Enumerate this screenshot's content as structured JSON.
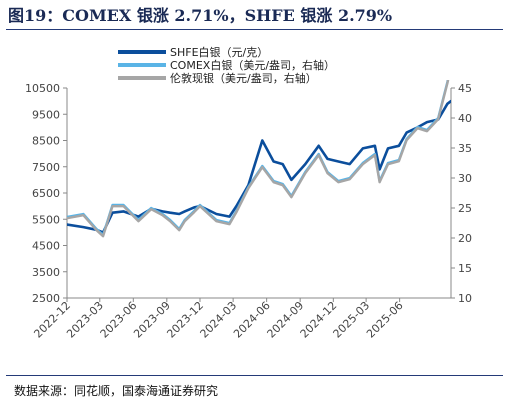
{
  "figure": {
    "title": "图19：COMEX 银涨 2.71%，SHFE 银涨 2.79%",
    "source": "数据来源：同花顺，国泰海通证券研究"
  },
  "chart_data": {
    "type": "line",
    "x_tick_labels": [
      "2022-12",
      "2023-03",
      "2023-06",
      "2023-09",
      "2023-12",
      "2024-03",
      "2024-06",
      "2024-09",
      "2024-12",
      "2025-03",
      "2025-06"
    ],
    "x_range": [
      "2022-12-01",
      "2025-10-20"
    ],
    "y_left": {
      "min": 2500,
      "max": 10500,
      "ticks": [
        2500,
        3500,
        4500,
        5500,
        6500,
        7500,
        8500,
        9500,
        10500
      ]
    },
    "y_right": {
      "min": 10,
      "max": 45,
      "ticks": [
        10,
        15,
        20,
        25,
        30,
        35,
        40,
        45
      ]
    },
    "legend": {
      "position": "top-center"
    },
    "colors": {
      "shfe": "#0b4e9c",
      "comex": "#5ab4e6",
      "london": "#a6a6a6"
    },
    "series": [
      {
        "name": "SHFE白银（元/克）",
        "axis": "left",
        "x": [
          "2022-12-01",
          "2023-01-15",
          "2023-02-20",
          "2023-03-10",
          "2023-04-05",
          "2023-05-05",
          "2023-06-15",
          "2023-07-20",
          "2023-08-20",
          "2023-09-10",
          "2023-10-05",
          "2023-10-20",
          "2023-11-15",
          "2023-12-01",
          "2024-01-15",
          "2024-02-20",
          "2024-03-10",
          "2024-04-12",
          "2024-05-20",
          "2024-06-20",
          "2024-07-15",
          "2024-08-08",
          "2024-09-15",
          "2024-10-22",
          "2024-11-15",
          "2024-12-15",
          "2025-01-15",
          "2025-02-20",
          "2025-03-25",
          "2025-04-07",
          "2025-04-30",
          "2025-05-30",
          "2025-06-20",
          "2025-07-20",
          "2025-08-15",
          "2025-09-15",
          "2025-10-10",
          "2025-10-20"
        ],
        "y": [
          5300,
          5200,
          5100,
          5000,
          5750,
          5800,
          5600,
          5900,
          5800,
          5750,
          5700,
          5800,
          5950,
          6000,
          5700,
          5600,
          6000,
          6800,
          8500,
          7700,
          7600,
          7000,
          7600,
          8300,
          7800,
          7700,
          7600,
          8200,
          8300,
          7400,
          8200,
          8300,
          8800,
          9000,
          9200,
          9300,
          9900,
          10000
        ]
      },
      {
        "name": "COMEX白银（美元/盎司，右轴）",
        "axis": "right",
        "x": [
          "2022-12-01",
          "2023-01-15",
          "2023-02-20",
          "2023-03-10",
          "2023-04-05",
          "2023-05-05",
          "2023-06-15",
          "2023-07-20",
          "2023-08-20",
          "2023-09-10",
          "2023-10-05",
          "2023-10-20",
          "2023-11-15",
          "2023-12-01",
          "2024-01-15",
          "2024-02-20",
          "2024-03-10",
          "2024-04-12",
          "2024-05-20",
          "2024-06-20",
          "2024-07-15",
          "2024-08-08",
          "2024-09-15",
          "2024-10-22",
          "2024-11-15",
          "2024-12-15",
          "2025-01-15",
          "2025-02-20",
          "2025-03-25",
          "2025-04-07",
          "2025-04-30",
          "2025-05-30",
          "2025-06-20",
          "2025-07-20",
          "2025-08-15",
          "2025-09-15",
          "2025-10-10",
          "2025-10-20"
        ],
        "y": [
          23.5,
          24.0,
          21.5,
          20.5,
          25.5,
          25.5,
          23.0,
          25.0,
          24.0,
          23.0,
          21.5,
          23.0,
          24.5,
          25.5,
          23.0,
          22.5,
          24.5,
          28.5,
          32.0,
          29.5,
          29.0,
          27.0,
          31.0,
          34.0,
          31.0,
          29.5,
          30.0,
          32.5,
          34.0,
          29.5,
          32.5,
          33.0,
          36.5,
          38.5,
          38.0,
          40.0,
          46.0,
          49.0
        ]
      },
      {
        "name": "伦敦现银（美元/盎司，右轴）",
        "axis": "right",
        "x": [
          "2022-12-01",
          "2023-01-15",
          "2023-02-20",
          "2023-03-10",
          "2023-04-05",
          "2023-05-05",
          "2023-06-15",
          "2023-07-20",
          "2023-08-20",
          "2023-09-10",
          "2023-10-05",
          "2023-10-20",
          "2023-11-15",
          "2023-12-01",
          "2024-01-15",
          "2024-02-20",
          "2024-03-10",
          "2024-04-12",
          "2024-05-20",
          "2024-06-20",
          "2024-07-15",
          "2024-08-08",
          "2024-09-15",
          "2024-10-22",
          "2024-11-15",
          "2024-12-15",
          "2025-01-15",
          "2025-02-20",
          "2025-03-25",
          "2025-04-07",
          "2025-04-30",
          "2025-05-30",
          "2025-06-20",
          "2025-07-20",
          "2025-08-15",
          "2025-09-15",
          "2025-10-10",
          "2025-10-20"
        ],
        "y": [
          23.3,
          23.8,
          21.3,
          20.3,
          25.3,
          25.3,
          22.8,
          24.8,
          23.8,
          22.8,
          21.3,
          22.8,
          24.3,
          25.3,
          22.8,
          22.3,
          24.3,
          28.3,
          31.8,
          29.3,
          28.8,
          26.8,
          30.8,
          33.8,
          30.8,
          29.3,
          29.8,
          32.3,
          33.8,
          29.3,
          32.3,
          32.8,
          36.3,
          38.3,
          37.8,
          39.8,
          45.8,
          48.6
        ]
      }
    ]
  }
}
